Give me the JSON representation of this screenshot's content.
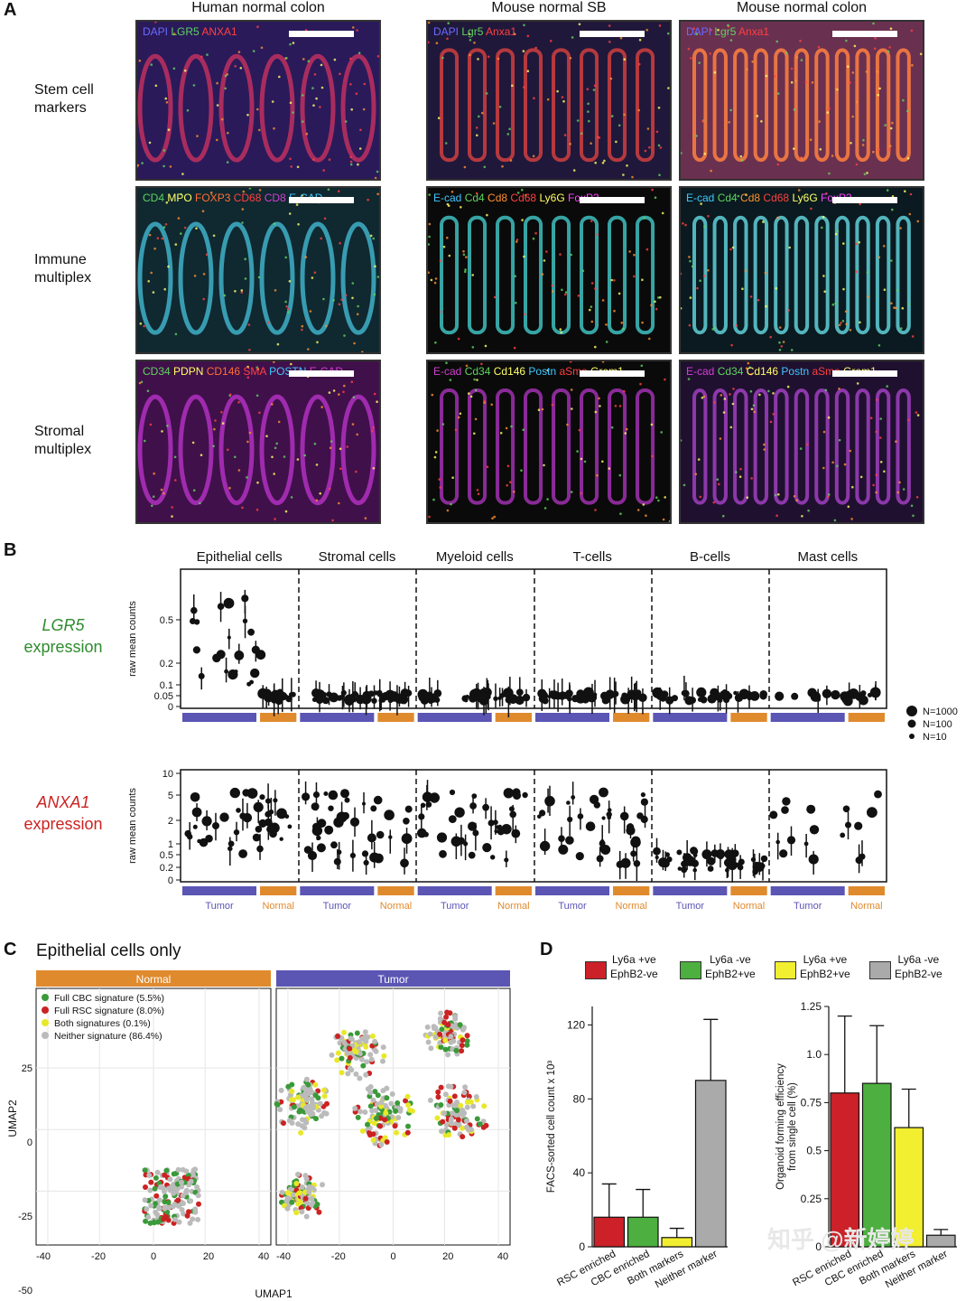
{
  "panels": {
    "A": "A",
    "B": "B",
    "C": "C",
    "D": "D"
  },
  "panelA": {
    "columns": [
      "Human normal colon",
      "Mouse normal SB",
      "Mouse normal colon"
    ],
    "rows": [
      "Stem cell markers",
      "Immune multiplex",
      "Stromal multiplex"
    ],
    "stains": [
      [
        [
          {
            "t": "DAPI",
            "c": "#6a6aff"
          },
          {
            "t": "LGR5",
            "c": "#5fd35f"
          },
          {
            "t": "ANXA1",
            "c": "#ff4040"
          }
        ],
        [
          {
            "t": "DAPI",
            "c": "#6a6aff"
          },
          {
            "t": "Lgr5",
            "c": "#5fd35f"
          },
          {
            "t": "Anxa1",
            "c": "#ff4040"
          }
        ],
        [
          {
            "t": "DAPI",
            "c": "#6a6aff"
          },
          {
            "t": "Lgr5",
            "c": "#5fd35f"
          },
          {
            "t": "Anxa1",
            "c": "#ff4040"
          }
        ]
      ],
      [
        [
          {
            "t": "CD4",
            "c": "#5fd35f"
          },
          {
            "t": "MPO",
            "c": "#ffff66"
          },
          {
            "t": "FOXP3",
            "c": "#ff7030"
          },
          {
            "t": "CD68",
            "c": "#ff4040"
          },
          {
            "t": "CD8",
            "c": "#d040d0"
          },
          {
            "t": "E-CAD",
            "c": "#40c8ff"
          }
        ],
        [
          {
            "t": "E-cad",
            "c": "#40c8ff"
          },
          {
            "t": "Cd4",
            "c": "#5fd35f"
          },
          {
            "t": "Cd8",
            "c": "#ff9030"
          },
          {
            "t": "Cd68",
            "c": "#ff4040"
          },
          {
            "t": "Ly6G",
            "c": "#ffff66"
          },
          {
            "t": "FoxP3",
            "c": "#ff40ff"
          }
        ],
        [
          {
            "t": "E-cad",
            "c": "#40c8ff"
          },
          {
            "t": "Cd4",
            "c": "#5fd35f"
          },
          {
            "t": "Cd8",
            "c": "#ff9030"
          },
          {
            "t": "Cd68",
            "c": "#ff4040"
          },
          {
            "t": "Ly6G",
            "c": "#ffff66"
          },
          {
            "t": "FoxP3",
            "c": "#ff40ff"
          }
        ]
      ],
      [
        [
          {
            "t": "CD34",
            "c": "#5fd35f"
          },
          {
            "t": "PDPN",
            "c": "#ffff66"
          },
          {
            "t": "CD146",
            "c": "#ff7030"
          },
          {
            "t": "SMA",
            "c": "#ff4040"
          },
          {
            "t": "POSTN",
            "c": "#40c8ff"
          },
          {
            "t": "E-CAD",
            "c": "#d040d0"
          }
        ],
        [
          {
            "t": "E-cad",
            "c": "#d040d0"
          },
          {
            "t": "Cd34",
            "c": "#5fd35f"
          },
          {
            "t": "Cd146",
            "c": "#ffff66"
          },
          {
            "t": "Postn",
            "c": "#40c8ff"
          },
          {
            "t": "aSma",
            "c": "#ff4040"
          },
          {
            "t": "Grem1",
            "c": "#ffff66"
          }
        ],
        [
          {
            "t": "E-cad",
            "c": "#d040d0"
          },
          {
            "t": "Cd34",
            "c": "#5fd35f"
          },
          {
            "t": "Cd146",
            "c": "#ffff66"
          },
          {
            "t": "Postn",
            "c": "#40c8ff"
          },
          {
            "t": "aSma",
            "c": "#ff4040"
          },
          {
            "t": "Grem1",
            "c": "#ffff66"
          }
        ]
      ]
    ]
  },
  "panelB": {
    "celltypes": [
      "Epithelial cells",
      "Stromal cells",
      "Myeloid cells",
      "T-cells",
      "B-cells",
      "Mast cells"
    ],
    "lgr5_label": "LGR5",
    "anxa1_label": "ANXA1",
    "expression_word": "expression",
    "ylabel": "raw mean counts",
    "lgr5_ticks": [
      "0.5",
      "0.2",
      "0.1",
      "0.05",
      "0"
    ],
    "anxa1_ticks": [
      "10",
      "5",
      "2",
      "1",
      "0.5",
      "0.2",
      "0"
    ],
    "size_legend": [
      "N=1000",
      "N=100",
      "N=10"
    ],
    "groups": [
      "Tumor",
      "Normal"
    ],
    "tumor_color": "#5b55b4",
    "normal_color": "#e08a2e"
  },
  "panelC": {
    "title": "Epithelial cells only",
    "strips": [
      "Normal",
      "Tumor"
    ],
    "legend": [
      {
        "label": "Full CBC signature (5.5%)",
        "color": "#3a9a3a"
      },
      {
        "label": "Full RSC signature (8.0%)",
        "color": "#cc2222"
      },
      {
        "label": "Both signatures (0.1%)",
        "color": "#e8e82a"
      },
      {
        "label": "Neither signature (86.4%)",
        "color": "#bbbbbb"
      }
    ],
    "xlabel": "UMAP1",
    "ylabel": "UMAP2",
    "xticks": [
      "-40",
      "-20",
      "0",
      "20",
      "40"
    ],
    "yticks": [
      "25",
      "0",
      "-25",
      "-50"
    ]
  },
  "panelD": {
    "legend": [
      {
        "line1": "Ly6a +ve",
        "line2": "EphB2-ve",
        "color": "#cc2128"
      },
      {
        "line1": "Ly6a -ve",
        "line2": "EphB2+ve",
        "color": "#4caf3f"
      },
      {
        "line1": "Ly6a +ve",
        "line2": "EphB2+ve",
        "color": "#f2ee30"
      },
      {
        "line1": "Ly6a -ve",
        "line2": "EphB2-ve",
        "color": "#aaaaaa"
      }
    ],
    "watermark": "知乎 @新婷婷"
  },
  "chart_data": [
    {
      "type": "bar",
      "categories": [
        "RSC enriched",
        "CBC enriched",
        "Both markers",
        "Neither marker"
      ],
      "values": [
        16,
        16,
        5,
        90
      ],
      "errors": [
        18,
        15,
        5,
        33
      ],
      "ylabel": "FACS-sorted cell count x 10³",
      "ylim": [
        0,
        130
      ],
      "yticks": [
        "0",
        "40",
        "80",
        "120"
      ],
      "colors": [
        "#cc2128",
        "#4caf3f",
        "#f2ee30",
        "#aaaaaa"
      ]
    },
    {
      "type": "bar",
      "categories": [
        "RSC enriched",
        "CBC enriched",
        "Both markers",
        "Neither marker"
      ],
      "values": [
        0.8,
        0.85,
        0.62,
        0.06
      ],
      "errors": [
        0.4,
        0.3,
        0.2,
        0.03
      ],
      "ylabel": "Organoid forming efficiency from single cell (%)",
      "ylim": [
        0,
        1.25
      ],
      "yticks": [
        "0",
        "0.25",
        "0.5",
        "0.75",
        "1.0",
        "1.25"
      ],
      "colors": [
        "#cc2128",
        "#4caf3f",
        "#f2ee30",
        "#aaaaaa"
      ]
    }
  ]
}
